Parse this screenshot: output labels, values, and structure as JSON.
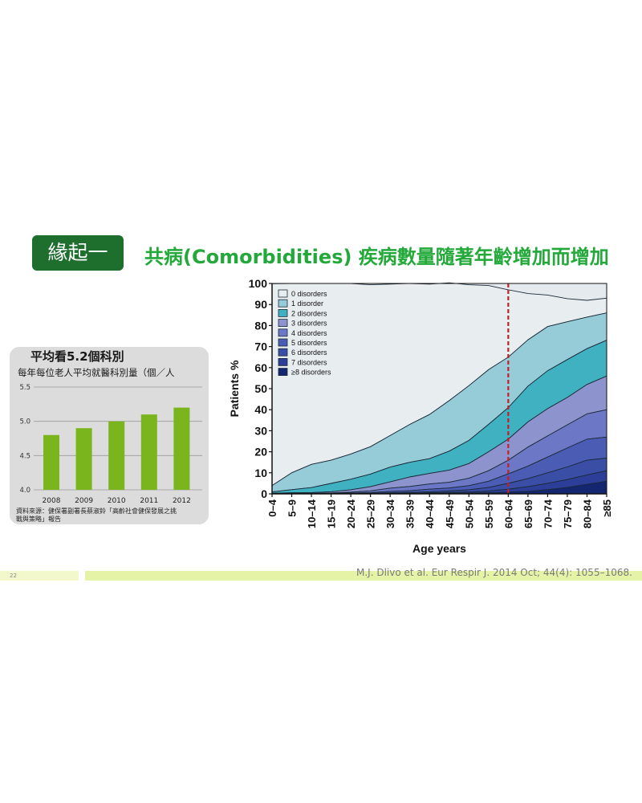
{
  "slide": {
    "badge": "緣起一",
    "title": "共病(Comorbidities) 疾病數量隨著年齡增加而增加",
    "slide_number": "22",
    "citation": "M.J. Dlivo et al. Eur Respir J. 2014 Oct; 44(4): 1055–1068."
  },
  "colors": {
    "badge_bg": "#1e6e2e",
    "title": "#22a93a",
    "bar": "#7ab51d",
    "plot_bg": "#e4eaed",
    "marker": "#c0202a"
  },
  "chart_data": [
    {
      "type": "bar",
      "title": "平均看5.2個科別",
      "subtitle": "每年每位老人平均就醫科別量（個／人",
      "source_note_line1": "資料來源：健保署副署長蔡淑鈴「高齡社會健保發展之挑",
      "source_note_line2": "戰與策略」報告",
      "categories": [
        "2008",
        "2009",
        "2010",
        "2011",
        "2012"
      ],
      "values": [
        4.8,
        4.9,
        5.0,
        5.1,
        5.2
      ],
      "ylim": [
        4.0,
        5.5
      ],
      "yticks": [
        "4.0",
        "4.5",
        "5.0",
        "5.5"
      ],
      "grid": true
    },
    {
      "type": "area",
      "stacked": true,
      "xlabel": "Age years",
      "ylabel": "Patients %",
      "ylim": [
        0,
        100
      ],
      "yticks": [
        "0",
        "10",
        "20",
        "30",
        "40",
        "50",
        "60",
        "70",
        "80",
        "90",
        "100"
      ],
      "categories": [
        "0–4",
        "5–9",
        "10–14",
        "15–19",
        "20–24",
        "25–29",
        "30–34",
        "35–39",
        "40–44",
        "45–49",
        "50–54",
        "55–59",
        "60–64",
        "65–69",
        "70–74",
        "75–79",
        "80–84",
        "≥85"
      ],
      "marker": {
        "category": "60–64",
        "style": "dashed vertical line"
      },
      "legend_position": "top-left",
      "grid": false,
      "series": [
        {
          "name": "0 disorders",
          "color": "#e8edf0",
          "values": [
            96,
            90,
            86,
            84,
            81,
            77,
            72,
            67,
            62,
            56,
            48,
            40,
            32,
            22,
            15,
            11,
            8,
            7
          ]
        },
        {
          "name": "1 disorder",
          "color": "#95ccd8",
          "values": [
            3,
            8,
            11,
            11,
            12,
            13,
            15,
            18,
            21,
            24,
            26,
            26,
            24,
            22,
            21,
            18,
            15,
            13
          ]
        },
        {
          "name": "2 disorders",
          "color": "#3fb1c1",
          "values": [
            0.6,
            1.5,
            2.4,
            4,
            5,
            6,
            7,
            7,
            7,
            9,
            11,
            13,
            15,
            17,
            18,
            18,
            17,
            17
          ]
        },
        {
          "name": "3 disorders",
          "color": "#8c93cd",
          "values": [
            0.2,
            0.3,
            0.4,
            0.6,
            1.2,
            2,
            3,
            4.5,
            5,
            5.8,
            7,
            9,
            10,
            12,
            13,
            13,
            14,
            16
          ]
        },
        {
          "name": "4 disorders",
          "color": "#6c78c5",
          "values": [
            0.1,
            0.1,
            0.1,
            0.2,
            0.4,
            0.8,
            1.5,
            2,
            2.5,
            2.7,
            3.5,
            5,
            6.5,
            9,
            10,
            11,
            12,
            13
          ]
        },
        {
          "name": "5 disorders",
          "color": "#4b5cb5",
          "values": [
            0,
            0.05,
            0.05,
            0.1,
            0.2,
            0.3,
            0.7,
            0.8,
            1.2,
            1.4,
            2,
            3,
            4.5,
            6,
            7.5,
            9,
            10,
            10
          ]
        },
        {
          "name": "6 disorders",
          "color": "#3b4ea6",
          "values": [
            0,
            0.03,
            0.03,
            0.05,
            0.1,
            0.2,
            0.3,
            0.4,
            0.5,
            0.7,
            1,
            1.7,
            2.8,
            3.8,
            5,
            6,
            7,
            6
          ]
        },
        {
          "name": "7 disorders",
          "color": "#2c3e97",
          "values": [
            0,
            0.01,
            0.01,
            0.03,
            0.05,
            0.1,
            0.15,
            0.2,
            0.3,
            0.4,
            0.5,
            0.8,
            1.4,
            2.2,
            3,
            3.8,
            4.5,
            5
          ]
        },
        {
          "name": "≥8 disorders",
          "color": "#142670",
          "values": [
            0,
            0,
            0,
            0,
            0,
            0,
            0.05,
            0.1,
            0.2,
            0.3,
            0.4,
            0.5,
            0.8,
            1.2,
            2,
            3,
            4.5,
            6
          ]
        }
      ]
    }
  ]
}
